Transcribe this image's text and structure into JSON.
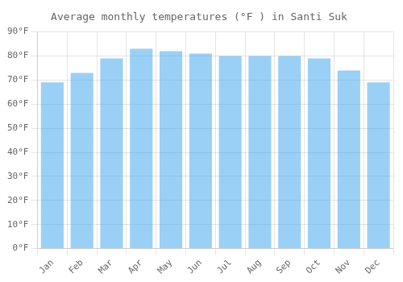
{
  "chart_data": {
    "type": "bar",
    "title": "Average monthly temperatures (°F ) in Santi Suk",
    "categories": [
      "Jan",
      "Feb",
      "Mar",
      "Apr",
      "May",
      "Jun",
      "Jul",
      "Aug",
      "Sep",
      "Oct",
      "Nov",
      "Dec"
    ],
    "values": [
      69,
      73,
      79,
      83,
      82,
      81,
      80,
      80,
      80,
      79,
      74,
      69
    ],
    "ylim": [
      0,
      90
    ],
    "yticks": [
      {
        "value": 0,
        "label": "0°F"
      },
      {
        "value": 10,
        "label": "10°F"
      },
      {
        "value": 20,
        "label": "20°F"
      },
      {
        "value": 30,
        "label": "30°F"
      },
      {
        "value": 40,
        "label": "40°F"
      },
      {
        "value": 50,
        "label": "50°F"
      },
      {
        "value": 60,
        "label": "60°F"
      },
      {
        "value": 70,
        "label": "70°F"
      },
      {
        "value": 80,
        "label": "80°F"
      },
      {
        "value": 90,
        "label": "90°F"
      }
    ],
    "grid": true
  }
}
